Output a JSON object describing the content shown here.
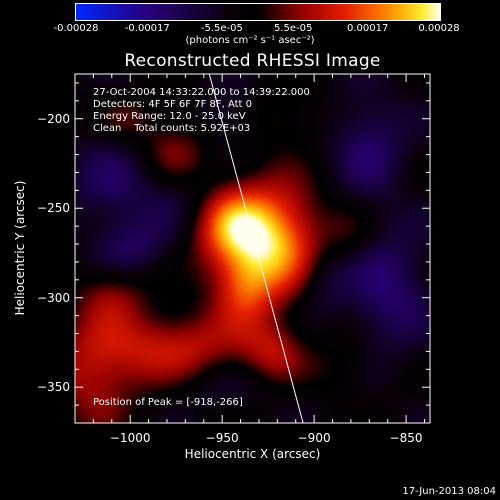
{
  "chart_data": {
    "type": "heatmap",
    "title": "Reconstructed RHESSI Image",
    "xlabel": "Heliocentric X (arcsec)",
    "ylabel": "Heliocentric Y (arcsec)",
    "xlim": [
      -1030,
      -837
    ],
    "ylim": [
      -370,
      -175
    ],
    "x_ticks": [
      -1000,
      -950,
      -900,
      -850
    ],
    "y_ticks": [
      -200,
      -250,
      -300,
      -350
    ],
    "colorbar": {
      "ticks": [
        "-0.00028",
        "-0.00017",
        "-5.5e-05",
        "5.5e-05",
        "0.00017",
        "0.00028"
      ],
      "range": [
        -0.00028,
        0.00028
      ],
      "units": "(photons cm⁻² s⁻¹ asec⁻²)"
    },
    "annotations": [
      "27-Oct-2004 14:33:22.000 to 14:39:22.000",
      "Detectors: 4F 5F 6F 7F 8F, Att 0",
      "Energy Range: 12.0 - 25.0 keV",
      "Clean    Total counts: 5.92E+03"
    ],
    "peak_label": "Position of Peak = [-918,-266]",
    "peak": [
      -918,
      -266
    ],
    "limb_line": [
      [
        -957,
        -175
      ],
      [
        -906,
        -370
      ]
    ],
    "sources": [
      {
        "x": -925,
        "y": -268,
        "sx": 20,
        "sy": 22,
        "v": 0.00028
      },
      {
        "x": -948,
        "y": -256,
        "sx": 14,
        "sy": 16,
        "v": 0.00015
      },
      {
        "x": -938,
        "y": -295,
        "sx": 12,
        "sy": 14,
        "v": 0.00012
      },
      {
        "x": -975,
        "y": -327,
        "sx": 30,
        "sy": 14,
        "v": 0.00014
      },
      {
        "x": -1020,
        "y": -343,
        "sx": 18,
        "sy": 22,
        "v": 0.00012
      },
      {
        "x": -1010,
        "y": -297,
        "sx": 14,
        "sy": 12,
        "v": 9e-05
      },
      {
        "x": -975,
        "y": -218,
        "sx": 14,
        "sy": 14,
        "v": 0.0001
      },
      {
        "x": -1000,
        "y": -200,
        "sx": 12,
        "sy": 10,
        "v": 6e-05
      },
      {
        "x": -922,
        "y": -330,
        "sx": 12,
        "sy": 12,
        "v": 0.0001
      },
      {
        "x": -918,
        "y": -200,
        "sx": 14,
        "sy": 12,
        "v": 7e-05
      },
      {
        "x": -880,
        "y": -265,
        "sx": 10,
        "sy": 12,
        "v": 4e-05
      },
      {
        "x": -885,
        "y": -338,
        "sx": 12,
        "sy": 12,
        "v": 5e-05
      },
      {
        "x": -1010,
        "y": -235,
        "sx": 18,
        "sy": 18,
        "v": -8e-05
      },
      {
        "x": -1000,
        "y": -272,
        "sx": 14,
        "sy": 12,
        "v": -9e-05
      },
      {
        "x": -965,
        "y": -243,
        "sx": 18,
        "sy": 14,
        "v": -7e-05
      },
      {
        "x": -945,
        "y": -200,
        "sx": 14,
        "sy": 12,
        "v": -6e-05
      },
      {
        "x": -870,
        "y": -215,
        "sx": 14,
        "sy": 20,
        "v": -0.0001
      },
      {
        "x": -860,
        "y": -295,
        "sx": 16,
        "sy": 24,
        "v": -0.00011
      },
      {
        "x": -895,
        "y": -290,
        "sx": 10,
        "sy": 14,
        "v": -7e-05
      },
      {
        "x": -950,
        "y": -350,
        "sx": 16,
        "sy": 10,
        "v": -4e-05
      }
    ]
  },
  "footer": {
    "timestamp": "17-Jun-2013 08:04"
  },
  "colors": {
    "background": "#000000",
    "text": "#ffffff"
  }
}
